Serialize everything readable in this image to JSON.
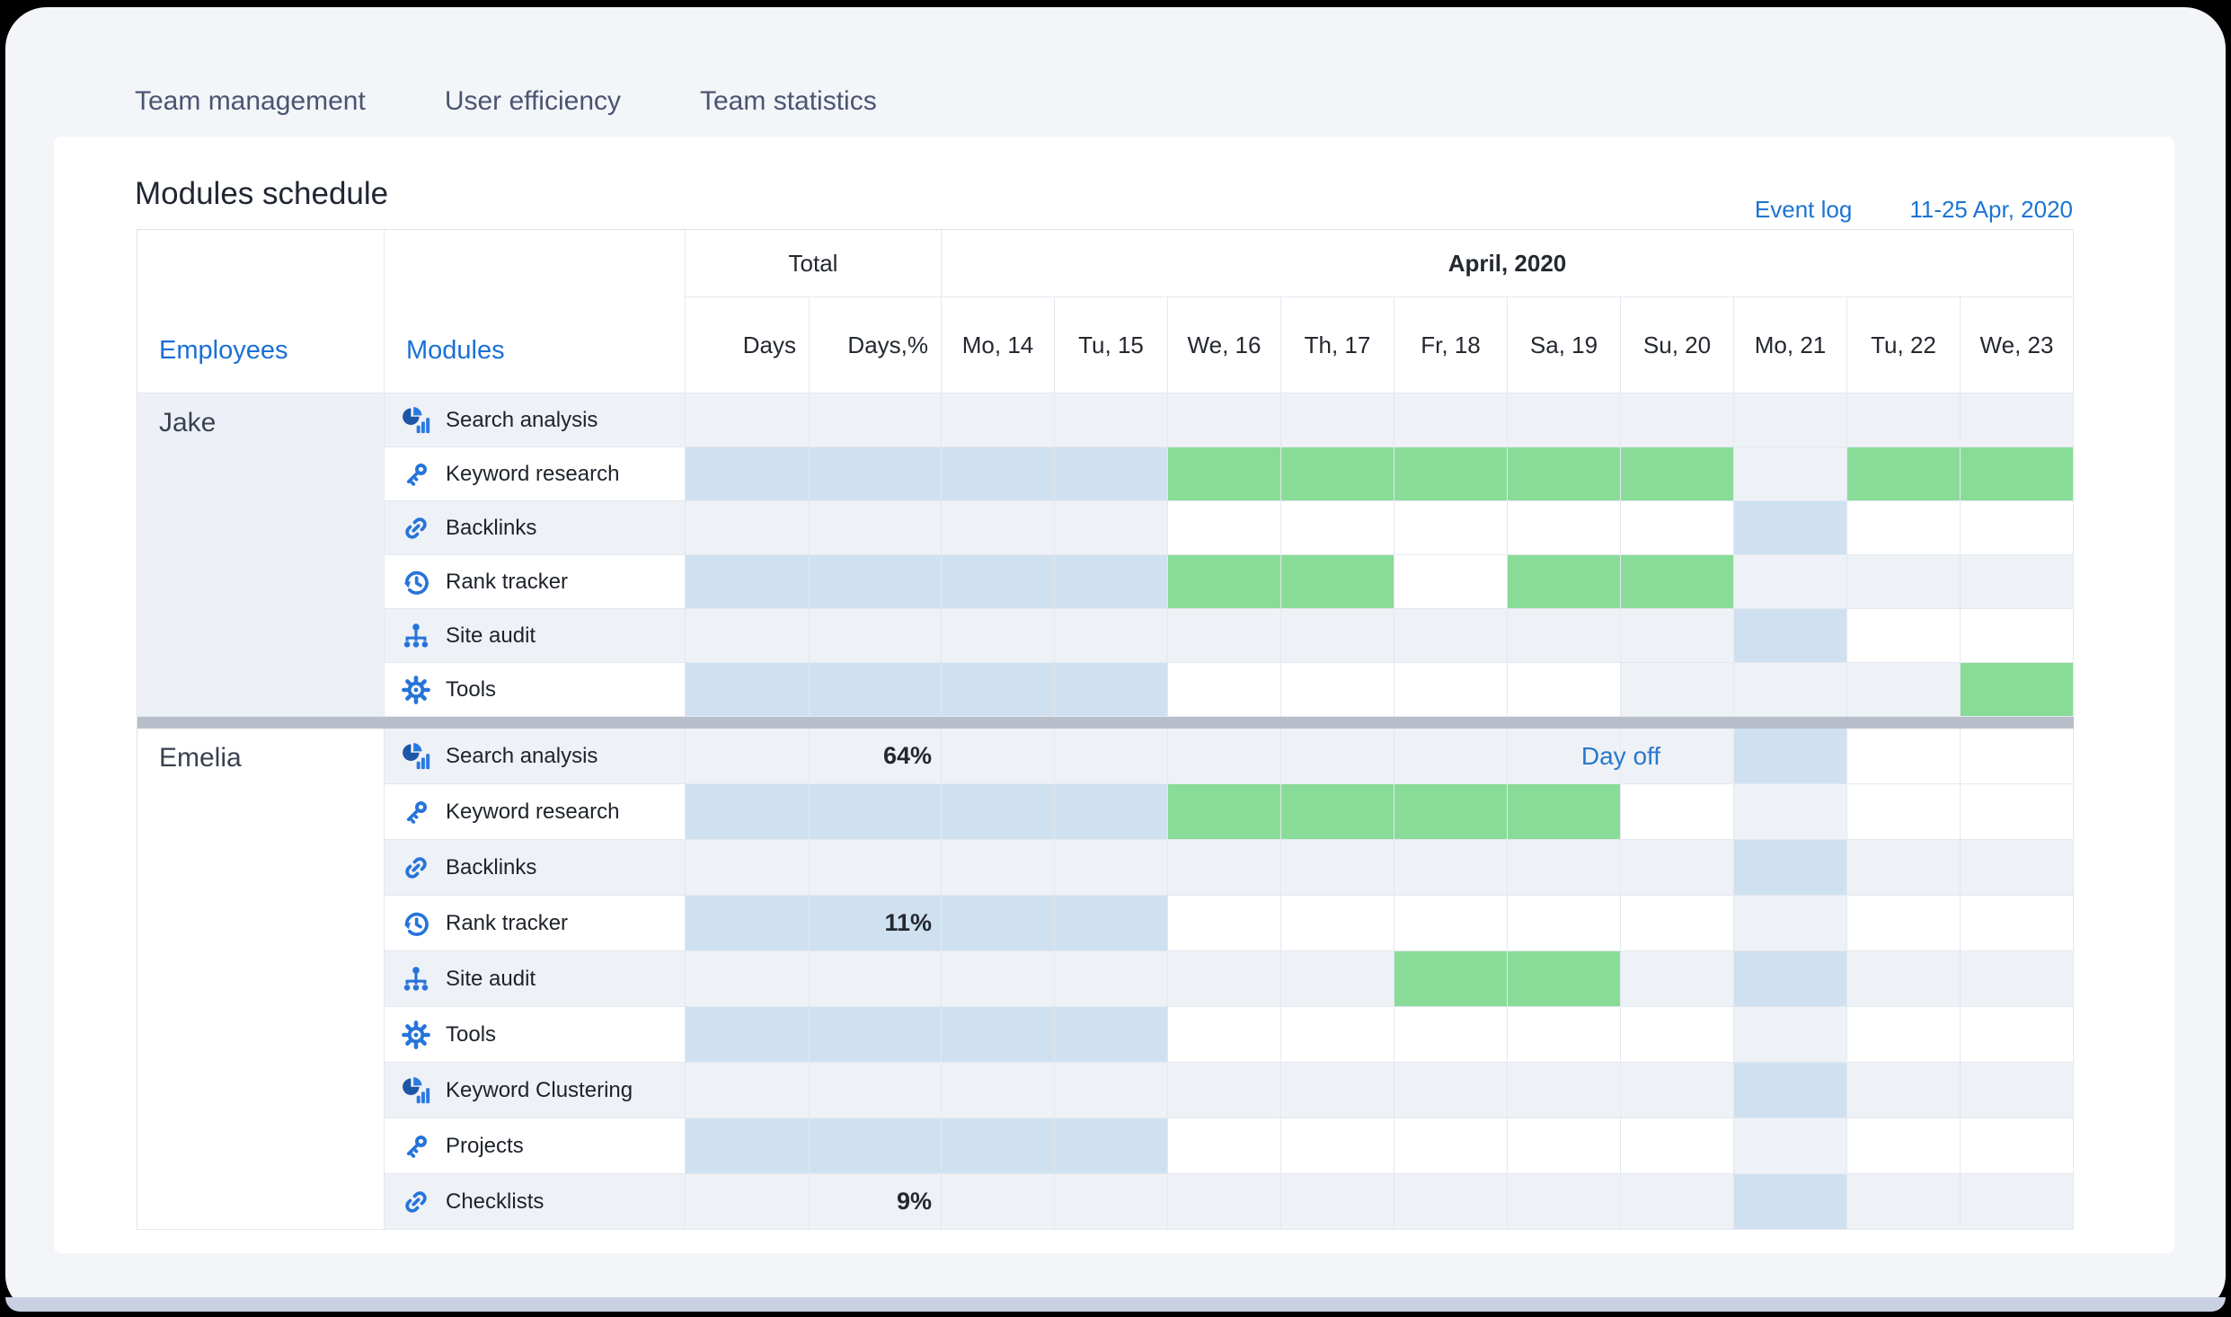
{
  "nav": {
    "tabs": [
      {
        "label": "Team management"
      },
      {
        "label": "User efficiency"
      },
      {
        "label": "Team statistics"
      }
    ]
  },
  "page": {
    "title": "Modules schedule",
    "event_log_label": "Event log",
    "date_range": "11-25 Apr, 2020"
  },
  "table": {
    "header": {
      "employees": "Employees",
      "modules": "Modules",
      "total": "Total",
      "month": "April, 2020",
      "days": "Days",
      "days_pct": "Days,%",
      "day_columns": [
        "Mo, 14",
        "Tu, 15",
        "We, 16",
        "Th, 17",
        "Fr, 18",
        "Sa, 19",
        "Su, 20",
        "Mo, 21",
        "Tu, 22",
        "We, 23"
      ]
    },
    "colors": {
      "scheduled_blue": "#cfe1f0",
      "done_green": "#89dc98",
      "row_gray": "#eef1f6",
      "divider_gray": "#b8bfca",
      "accent_blue": "#1a73e8"
    },
    "cell_legend": {
      "g": "row-gray",
      "w": "white",
      "b": "scheduled-blue",
      "G": "done-green"
    },
    "sections": [
      {
        "employee": "Jake",
        "panel": "gray",
        "rows": [
          {
            "icon": "chart-icon",
            "module": "Search analysis",
            "variant": "gray",
            "days": "",
            "days_pct": "",
            "cells": "gggggggggg"
          },
          {
            "icon": "key-icon",
            "module": "Keyword research",
            "variant": "blue",
            "days": "",
            "days_pct": "",
            "cells": "bbGGGGGgGG"
          },
          {
            "icon": "link-icon",
            "module": "Backlinks",
            "variant": "gray",
            "days": "",
            "days_pct": "",
            "cells": "ggwwwwwbww"
          },
          {
            "icon": "history-icon",
            "module": "Rank tracker",
            "variant": "blue",
            "days": "",
            "days_pct": "",
            "cells": "bbGGwGGggg"
          },
          {
            "icon": "sitemap-icon",
            "module": "Site audit",
            "variant": "gray",
            "days": "",
            "days_pct": "",
            "cells": "gggggggbww"
          },
          {
            "icon": "gear-icon",
            "module": "Tools",
            "variant": "blue",
            "days": "",
            "days_pct": "",
            "cells": "bbwwwwgggG"
          }
        ]
      },
      {
        "employee": "Emelia",
        "panel": "white",
        "rows": [
          {
            "icon": "chart-icon",
            "module": "Search analysis",
            "variant": "gray",
            "days": "",
            "days_pct": "64%",
            "cells": "gggggggbww",
            "annotation": {
              "label": "Day off",
              "day_start": 5,
              "day_span": 2
            }
          },
          {
            "icon": "key-icon",
            "module": "Keyword research",
            "variant": "blue",
            "days": "",
            "days_pct": "",
            "cells": "bbGGGGwgww"
          },
          {
            "icon": "link-icon",
            "module": "Backlinks",
            "variant": "gray",
            "days": "",
            "days_pct": "",
            "cells": "gggggggbgg"
          },
          {
            "icon": "history-icon",
            "module": "Rank tracker",
            "variant": "blue",
            "days": "",
            "days_pct": "11%",
            "cells": "bbwwwwwgww"
          },
          {
            "icon": "sitemap-icon",
            "module": "Site audit",
            "variant": "gray",
            "days": "",
            "days_pct": "",
            "cells": "ggggGGgbgg"
          },
          {
            "icon": "gear-icon",
            "module": "Tools",
            "variant": "blue",
            "days": "",
            "days_pct": "",
            "cells": "bbwwwwwgww"
          },
          {
            "icon": "chart-icon",
            "module": "Keyword Clustering",
            "variant": "gray",
            "days": "",
            "days_pct": "",
            "cells": "gggggggbgg"
          },
          {
            "icon": "key-icon",
            "module": "Projects",
            "variant": "blue",
            "days": "",
            "days_pct": "",
            "cells": "bbwwwwwgww"
          },
          {
            "icon": "link-icon",
            "module": "Checklists",
            "variant": "gray",
            "days": "",
            "days_pct": "9%",
            "cells": "gggggggbgg"
          }
        ]
      }
    ]
  }
}
